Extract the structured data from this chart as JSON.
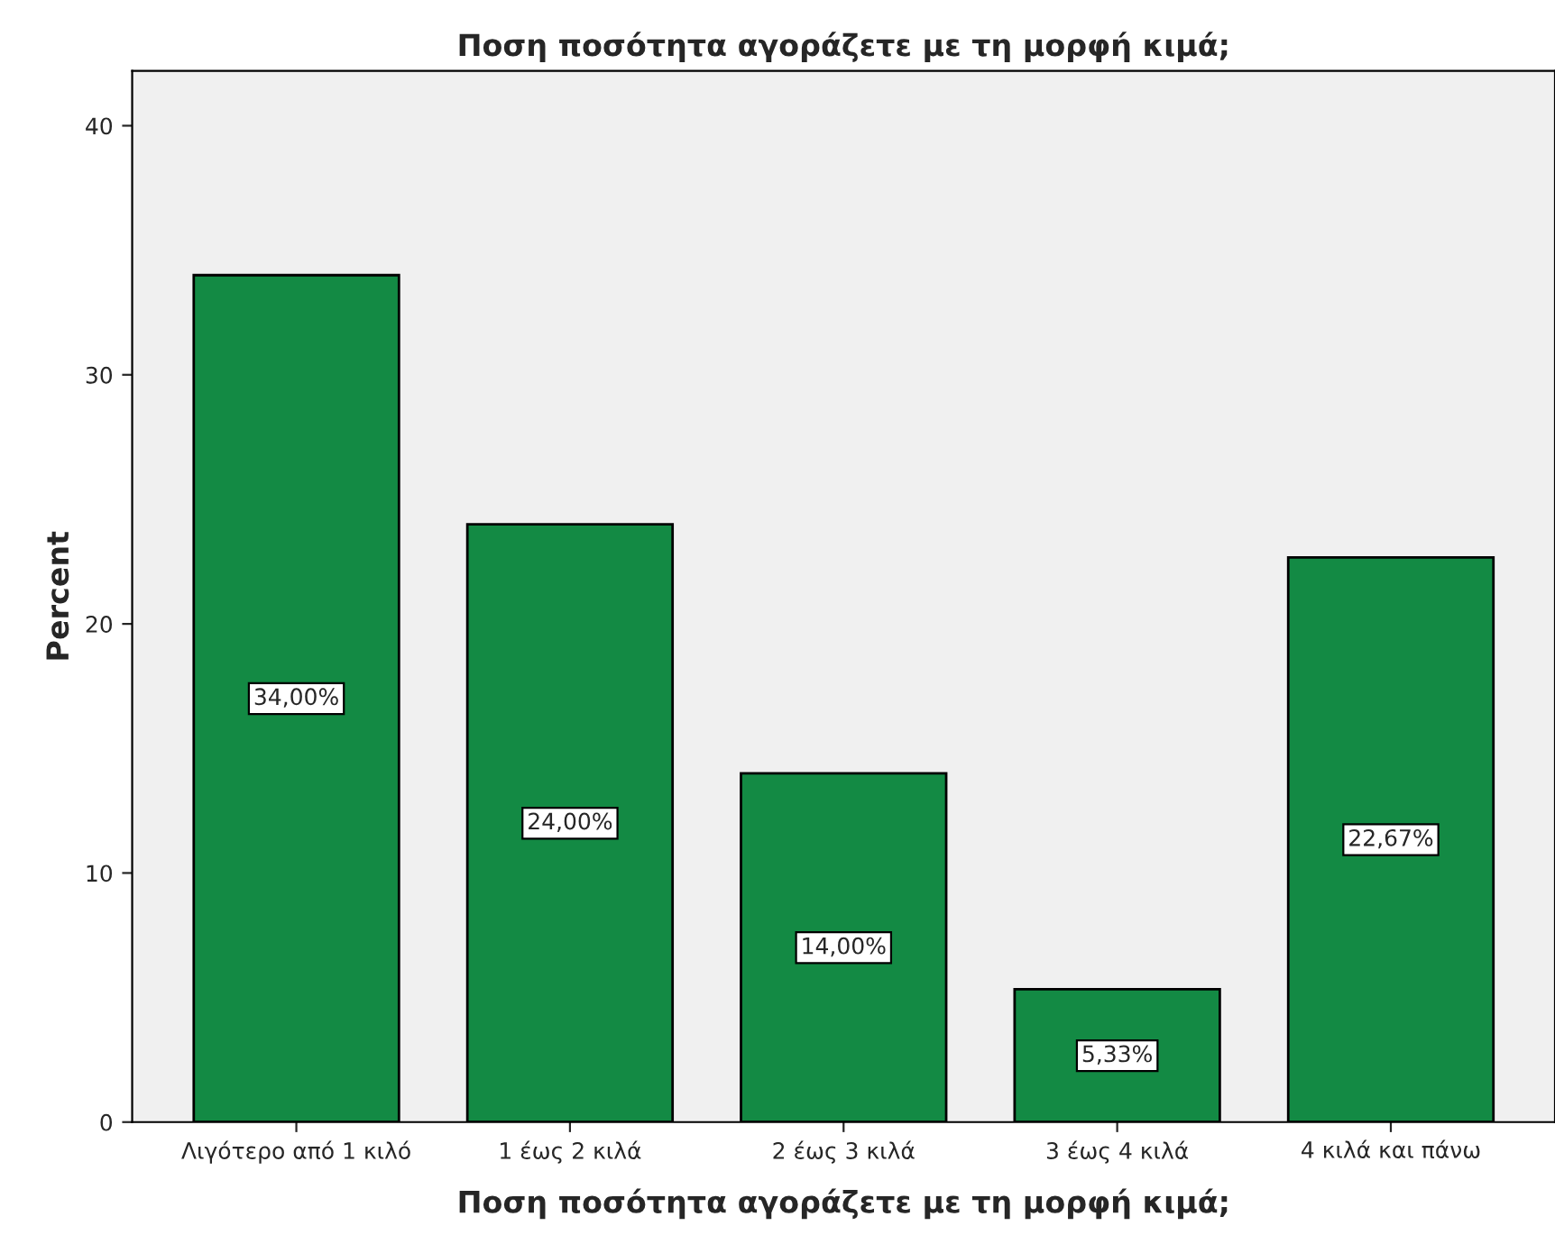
{
  "chart_data": {
    "type": "bar",
    "title": "Ποση ποσότητα αγοράζετε με τη μορφή κιμά;",
    "xlabel": "Ποση ποσότητα αγοράζετε με τη μορφή κιμά;",
    "ylabel": "Percent",
    "categories": [
      "Λιγότερο από 1 κιλό",
      "1 έως 2 κιλά",
      "2 έως 3 κιλά",
      "3 έως 4 κιλά",
      "4 κιλά και πάνω"
    ],
    "values": [
      34,
      24,
      14,
      5.33,
      22.67
    ],
    "value_labels": [
      "34,00%",
      "24,00%",
      "14,00%",
      "5,33%",
      "22,67%"
    ],
    "color": "#138a44",
    "ylim": [
      0,
      42.2
    ],
    "yticks": [
      0,
      10,
      20,
      30,
      40
    ],
    "grid": false,
    "legend": false
  }
}
